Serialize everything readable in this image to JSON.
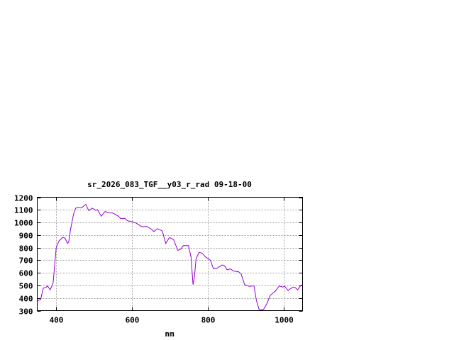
{
  "chart_data": {
    "type": "line",
    "title": "sr_2026_083_TGF__y03_r_rad 09-18-00",
    "xlabel": "nm",
    "ylabel": "",
    "xlim": [
      350,
      1050
    ],
    "ylim": [
      300,
      1200
    ],
    "xticks": [
      400,
      600,
      800,
      1000
    ],
    "yticks": [
      300,
      400,
      500,
      600,
      700,
      800,
      900,
      1000,
      1100,
      1200
    ],
    "grid": true,
    "line_color": "#9400d3",
    "series": [
      {
        "x": [
          350,
          355,
          359,
          366,
          374,
          377,
          384,
          392,
          400,
          407,
          417,
          423,
          430,
          433,
          438,
          446,
          452,
          458,
          467,
          478,
          486,
          495,
          504,
          509,
          519,
          529,
          540,
          550,
          564,
          570,
          581,
          589,
          601,
          611,
          626,
          639,
          651,
          658,
          667,
          680,
          689,
          698,
          701,
          710,
          721,
          729,
          735,
          749,
          756,
          761,
          765,
          769,
          777,
          785,
          794,
          807,
          815,
          825,
          838,
          844,
          851,
          860,
          867,
          881,
          888,
          897,
          909,
          922,
          928,
          936,
          947,
          956,
          965,
          978,
          989,
          997,
          1003,
          1012,
          1018,
          1025,
          1031,
          1037,
          1043,
          1050
        ],
        "y": [
          375,
          384,
          388,
          478,
          487,
          497,
          465,
          521,
          797,
          853,
          881,
          876,
          834,
          844,
          947,
          1069,
          1116,
          1119,
          1116,
          1144,
          1093,
          1114,
          1097,
          1101,
          1050,
          1087,
          1076,
          1074,
          1050,
          1031,
          1033,
          1012,
          1007,
          994,
          966,
          969,
          947,
          928,
          951,
          932,
          834,
          876,
          878,
          863,
          778,
          787,
          816,
          816,
          722,
          506,
          572,
          712,
          763,
          756,
          727,
          699,
          632,
          638,
          662,
          656,
          624,
          632,
          615,
          609,
          591,
          506,
          493,
          497,
          384,
          304,
          309,
          356,
          422,
          454,
          497,
          487,
          493,
          459,
          474,
          486,
          482,
          465,
          491,
          506
        ]
      }
    ]
  }
}
